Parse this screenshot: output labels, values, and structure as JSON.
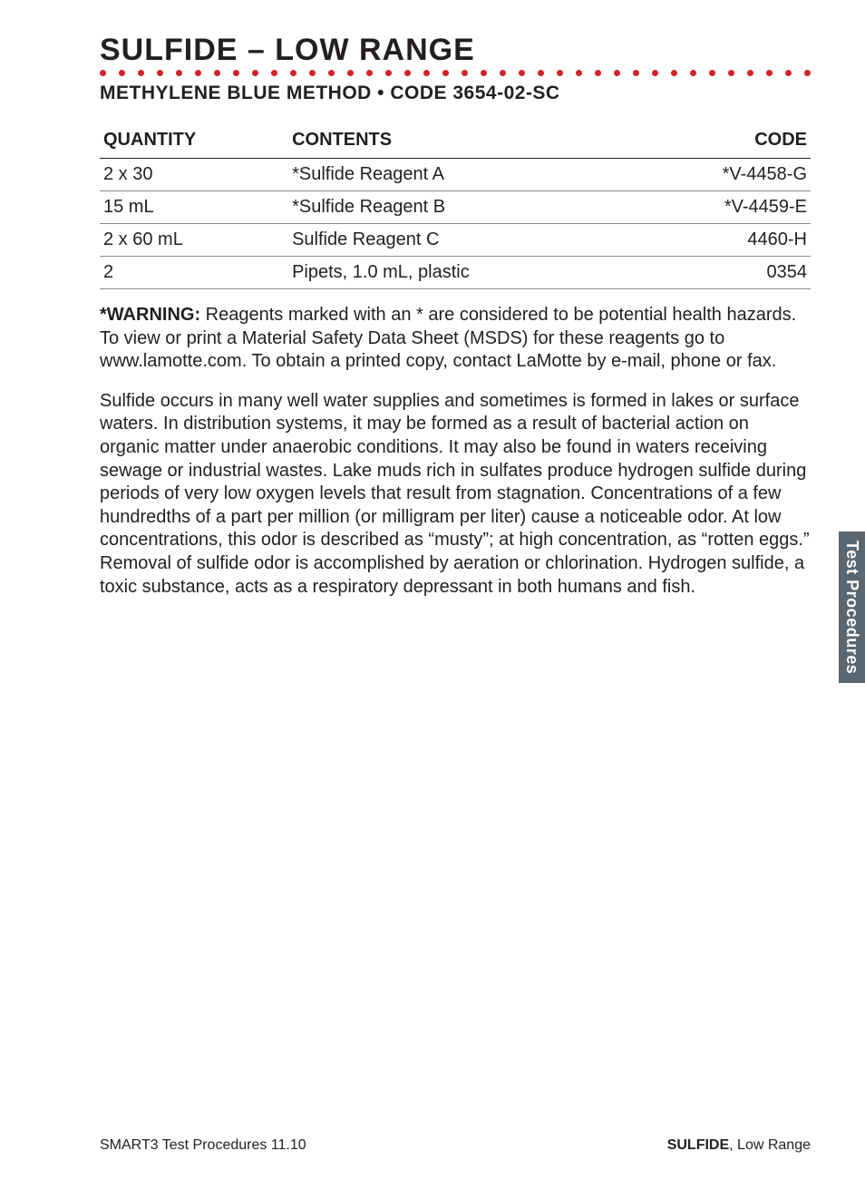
{
  "header": {
    "title": "SULFIDE – LOW RANGE",
    "subtitle": "METHYLENE BLUE METHOD • CODE 3654-02-SC",
    "dot_color": "#d2232a",
    "dot_count": 38
  },
  "table": {
    "columns": [
      "QUANTITY",
      "CONTENTS",
      "CODE"
    ],
    "rows": [
      [
        "2 x 30",
        "*Sulfide Reagent A",
        "*V-4458-G"
      ],
      [
        "15 mL",
        "*Sulfide Reagent B",
        "*V-4459-E"
      ],
      [
        "2 x 60 mL",
        "Sulfide Reagent C",
        "4460-H"
      ],
      [
        "2",
        "Pipets, 1.0 mL, plastic",
        "0354"
      ]
    ]
  },
  "warning": {
    "label": "*WARNING:",
    "text": " Reagents marked with an * are considered to be potential health hazards. To view or print a Material Safety Data Sheet (MSDS) for these reagents go to www.lamotte.com. To obtain a printed copy, contact LaMotte by e-mail, phone or fax."
  },
  "body": "Sulfide occurs in many well water supplies and sometimes is formed in lakes or surface waters. In distribution systems, it may be formed as a result of bacterial action on organic matter under anaerobic conditions. It may also be found in waters receiving sewage or industrial wastes. Lake muds rich in sulfates produce hydrogen sulfide during periods of very low oxygen levels that result from stagnation. Concentrations of a few hundredths of a part per million (or milligram per liter) cause a noticeable odor. At low concentrations, this odor is described as “musty”; at high concentration, as “rotten eggs.” Removal of sulfide odor is accomplished by aeration or chlorination. Hydrogen sulfide, a toxic substance, acts as a respiratory depressant in both humans and fish.",
  "sidetab": "Test Procedures",
  "footer": {
    "left": "SMART3 Test Procedures 11.10",
    "right_bold": "SULFIDE",
    "right_rest": ", Low Range"
  },
  "colors": {
    "text": "#231f20",
    "sidetab_bg": "#5b6770",
    "sidetab_text": "#ffffff"
  }
}
